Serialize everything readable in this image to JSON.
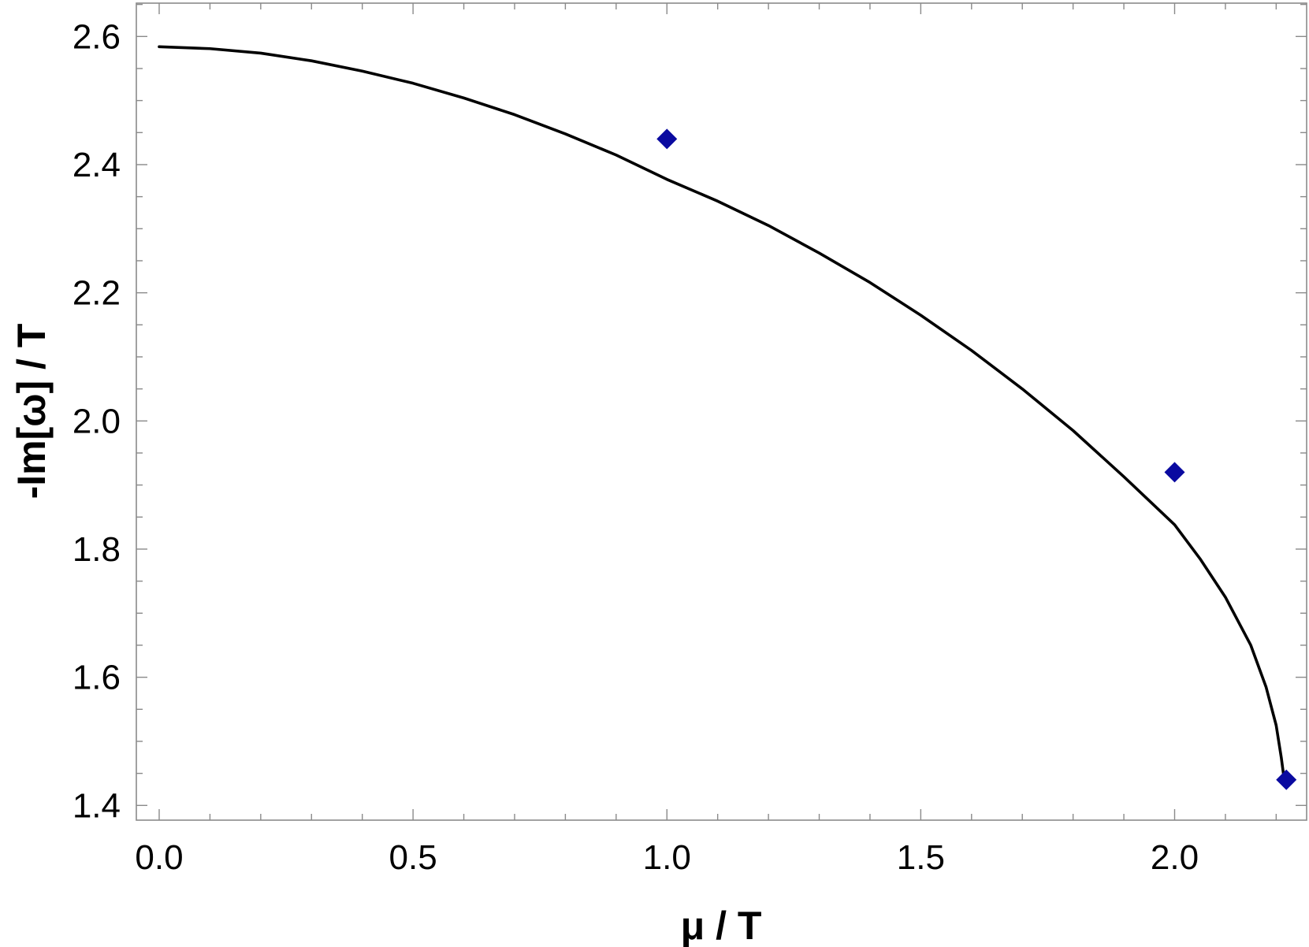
{
  "chart_data": {
    "type": "line",
    "xlabel": "μ / T",
    "ylabel": "-Im[ω] / T",
    "xlim": [
      -0.045,
      2.26
    ],
    "ylim": [
      1.377,
      2.652
    ],
    "x_ticks": [
      0.0,
      0.5,
      1.0,
      1.5,
      2.0
    ],
    "x_tick_labels": [
      "0.0",
      "0.5",
      "1.0",
      "1.5",
      "2.0"
    ],
    "y_ticks": [
      1.4,
      1.6,
      1.8,
      2.0,
      2.2,
      2.4,
      2.6
    ],
    "y_tick_labels": [
      "1.4",
      "1.6",
      "1.8",
      "2.0",
      "2.2",
      "2.4",
      "2.6"
    ],
    "grid": false,
    "legend": "none",
    "series": [
      {
        "kind": "line",
        "color": "#000000",
        "x": [
          0.0,
          0.1,
          0.2,
          0.3,
          0.4,
          0.5,
          0.6,
          0.7,
          0.8,
          0.9,
          1.0,
          1.1,
          1.2,
          1.3,
          1.4,
          1.5,
          1.6,
          1.7,
          1.8,
          1.9,
          2.0,
          2.05,
          2.1,
          2.15,
          2.18,
          2.2,
          2.21,
          2.215,
          2.218
        ],
        "y": [
          2.584,
          2.581,
          2.574,
          2.562,
          2.546,
          2.527,
          2.504,
          2.478,
          2.448,
          2.415,
          2.377,
          2.343,
          2.305,
          2.262,
          2.216,
          2.165,
          2.11,
          2.05,
          1.985,
          1.913,
          1.838,
          1.785,
          1.725,
          1.65,
          1.585,
          1.525,
          1.475,
          1.445,
          1.44
        ]
      },
      {
        "kind": "markers",
        "marker": "diamond",
        "color": "#0a0aa0",
        "x": [
          1.0,
          2.0,
          2.22
        ],
        "y": [
          2.44,
          1.92,
          1.44
        ]
      }
    ]
  }
}
